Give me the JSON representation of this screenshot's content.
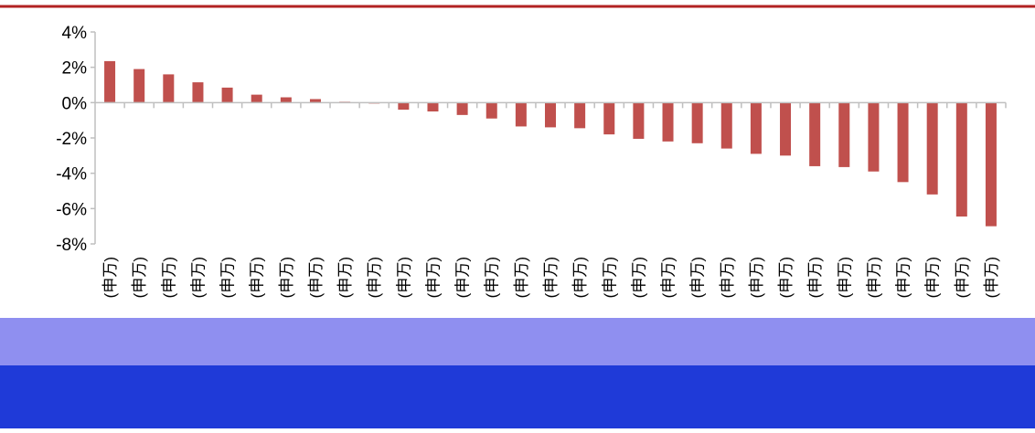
{
  "colors": {
    "bar": "#c0504d",
    "top_rule": "#b22222",
    "axis": "#bfbfbf",
    "artifact_light": "#8f8ff0",
    "artifact_dark": "#1f3ad8"
  },
  "chart_data": {
    "type": "bar",
    "title": "",
    "xlabel": "",
    "ylabel": "",
    "ylim": [
      -8,
      4
    ],
    "yticks": [
      4,
      2,
      0,
      -2,
      -4,
      -6,
      -8
    ],
    "ytick_labels": [
      "4%",
      "2%",
      "0%",
      "-2%",
      "-4%",
      "-6%",
      "-8%"
    ],
    "grid": false,
    "legend": "none",
    "categories": [
      "(申万)",
      "(申万)",
      "(申万)",
      "(申万)",
      "(申万)",
      "(申万)",
      "(申万)",
      "(申万)",
      "(申万)",
      "(申万)",
      "(申万)",
      "(申万)",
      "(申万)",
      "(申万)",
      "(申万)",
      "(申万)",
      "(申万)",
      "(申万)",
      "(申万)",
      "(申万)",
      "(申万)",
      "(申万)",
      "(申万)",
      "(申万)",
      "(申万)",
      "(申万)",
      "(申万)",
      "(申万)",
      "(申万)",
      "(申万)",
      "(申万)"
    ],
    "values": [
      2.35,
      1.9,
      1.6,
      1.15,
      0.85,
      0.45,
      0.3,
      0.2,
      0.05,
      -0.05,
      -0.4,
      -0.5,
      -0.7,
      -0.9,
      -1.35,
      -1.4,
      -1.45,
      -1.8,
      -2.05,
      -2.2,
      -2.3,
      -2.6,
      -2.9,
      -3.0,
      -3.6,
      -3.65,
      -3.9,
      -4.5,
      -5.2,
      -6.45,
      -7.0
    ]
  }
}
